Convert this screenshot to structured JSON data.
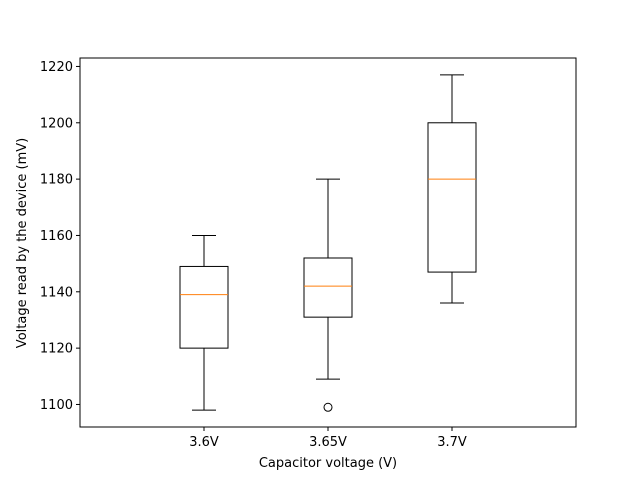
{
  "chart_data": {
    "type": "boxplot",
    "xlabel": "Capacitor voltage (V)",
    "ylabel": "Voltage read by the device (mV)",
    "ylim": [
      1092,
      1223
    ],
    "yticks": [
      1100,
      1120,
      1140,
      1160,
      1180,
      1200,
      1220
    ],
    "grid": false,
    "categories": [
      "3.6V",
      "3.65V",
      "3.7V"
    ],
    "boxes": [
      {
        "category": "3.6V",
        "whisker_low": 1098,
        "q1": 1120,
        "median": 1139,
        "q3": 1149,
        "whisker_high": 1160,
        "outliers": []
      },
      {
        "category": "3.65V",
        "whisker_low": 1109,
        "q1": 1131,
        "median": 1142,
        "q3": 1152,
        "whisker_high": 1180,
        "outliers": [
          1099
        ]
      },
      {
        "category": "3.7V",
        "whisker_low": 1136,
        "q1": 1147,
        "median": 1180,
        "q3": 1200,
        "whisker_high": 1217,
        "outliers": []
      }
    ],
    "colors": {
      "box": "#000000",
      "median": "#ff7f0e"
    }
  }
}
